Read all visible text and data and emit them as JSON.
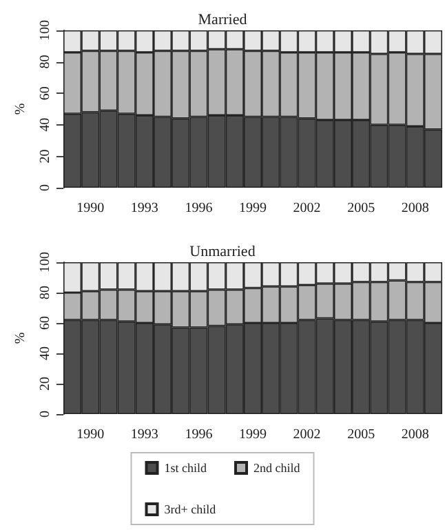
{
  "chart_data": [
    {
      "type": "bar",
      "title": "Married",
      "ylabel": "%",
      "stacked": true,
      "legend": false,
      "grid": false,
      "categories": [
        null,
        "1990",
        null,
        null,
        "1993",
        null,
        null,
        "1996",
        null,
        null,
        "1999",
        null,
        null,
        "2002",
        null,
        null,
        "2005",
        null,
        null,
        "2008",
        null
      ],
      "ylim": [
        0,
        100
      ],
      "yticks": [
        0,
        20,
        40,
        60,
        80,
        100
      ],
      "series": [
        {
          "color": "#4d4d4d",
          "values": [
            47,
            48,
            49,
            47,
            46,
            45,
            44,
            45,
            46,
            46,
            45,
            45,
            45,
            44,
            43,
            43,
            43,
            40,
            40,
            39,
            37
          ]
        },
        {
          "color": "#b3b3b3",
          "values": [
            39,
            39,
            38,
            40,
            40,
            42,
            43,
            42,
            42,
            42,
            42,
            42,
            41,
            42,
            43,
            43,
            43,
            45,
            46,
            46,
            48
          ]
        },
        {
          "color": "#e6e6e6",
          "values": [
            14,
            13,
            13,
            13,
            14,
            13,
            13,
            13,
            12,
            12,
            13,
            13,
            14,
            14,
            14,
            14,
            14,
            15,
            14,
            15,
            15
          ]
        }
      ]
    },
    {
      "type": "bar",
      "title": "Unmarried",
      "ylabel": "%",
      "stacked": true,
      "legend": "bottom",
      "grid": false,
      "categories": [
        null,
        "1990",
        null,
        null,
        "1993",
        null,
        null,
        "1996",
        null,
        null,
        "1999",
        null,
        null,
        "2002",
        null,
        null,
        "2005",
        null,
        null,
        "2008",
        null
      ],
      "ylim": [
        0,
        100
      ],
      "yticks": [
        0,
        20,
        40,
        60,
        80,
        100
      ],
      "series": [
        {
          "name": "1st child",
          "color": "#4d4d4d",
          "values": [
            62,
            62,
            62,
            61,
            60,
            59,
            57,
            57,
            58,
            59,
            60,
            60,
            60,
            62,
            63,
            62,
            62,
            61,
            62,
            62,
            60
          ]
        },
        {
          "name": "2nd child",
          "color": "#b3b3b3",
          "values": [
            18,
            19,
            20,
            21,
            21,
            22,
            24,
            24,
            24,
            23,
            23,
            24,
            24,
            23,
            23,
            24,
            25,
            26,
            26,
            25,
            27
          ]
        },
        {
          "name": "3rd+ child",
          "color": "#e6e6e6",
          "values": [
            20,
            19,
            18,
            18,
            19,
            19,
            19,
            19,
            18,
            18,
            17,
            16,
            16,
            15,
            14,
            14,
            13,
            13,
            12,
            13,
            13
          ]
        }
      ]
    }
  ]
}
